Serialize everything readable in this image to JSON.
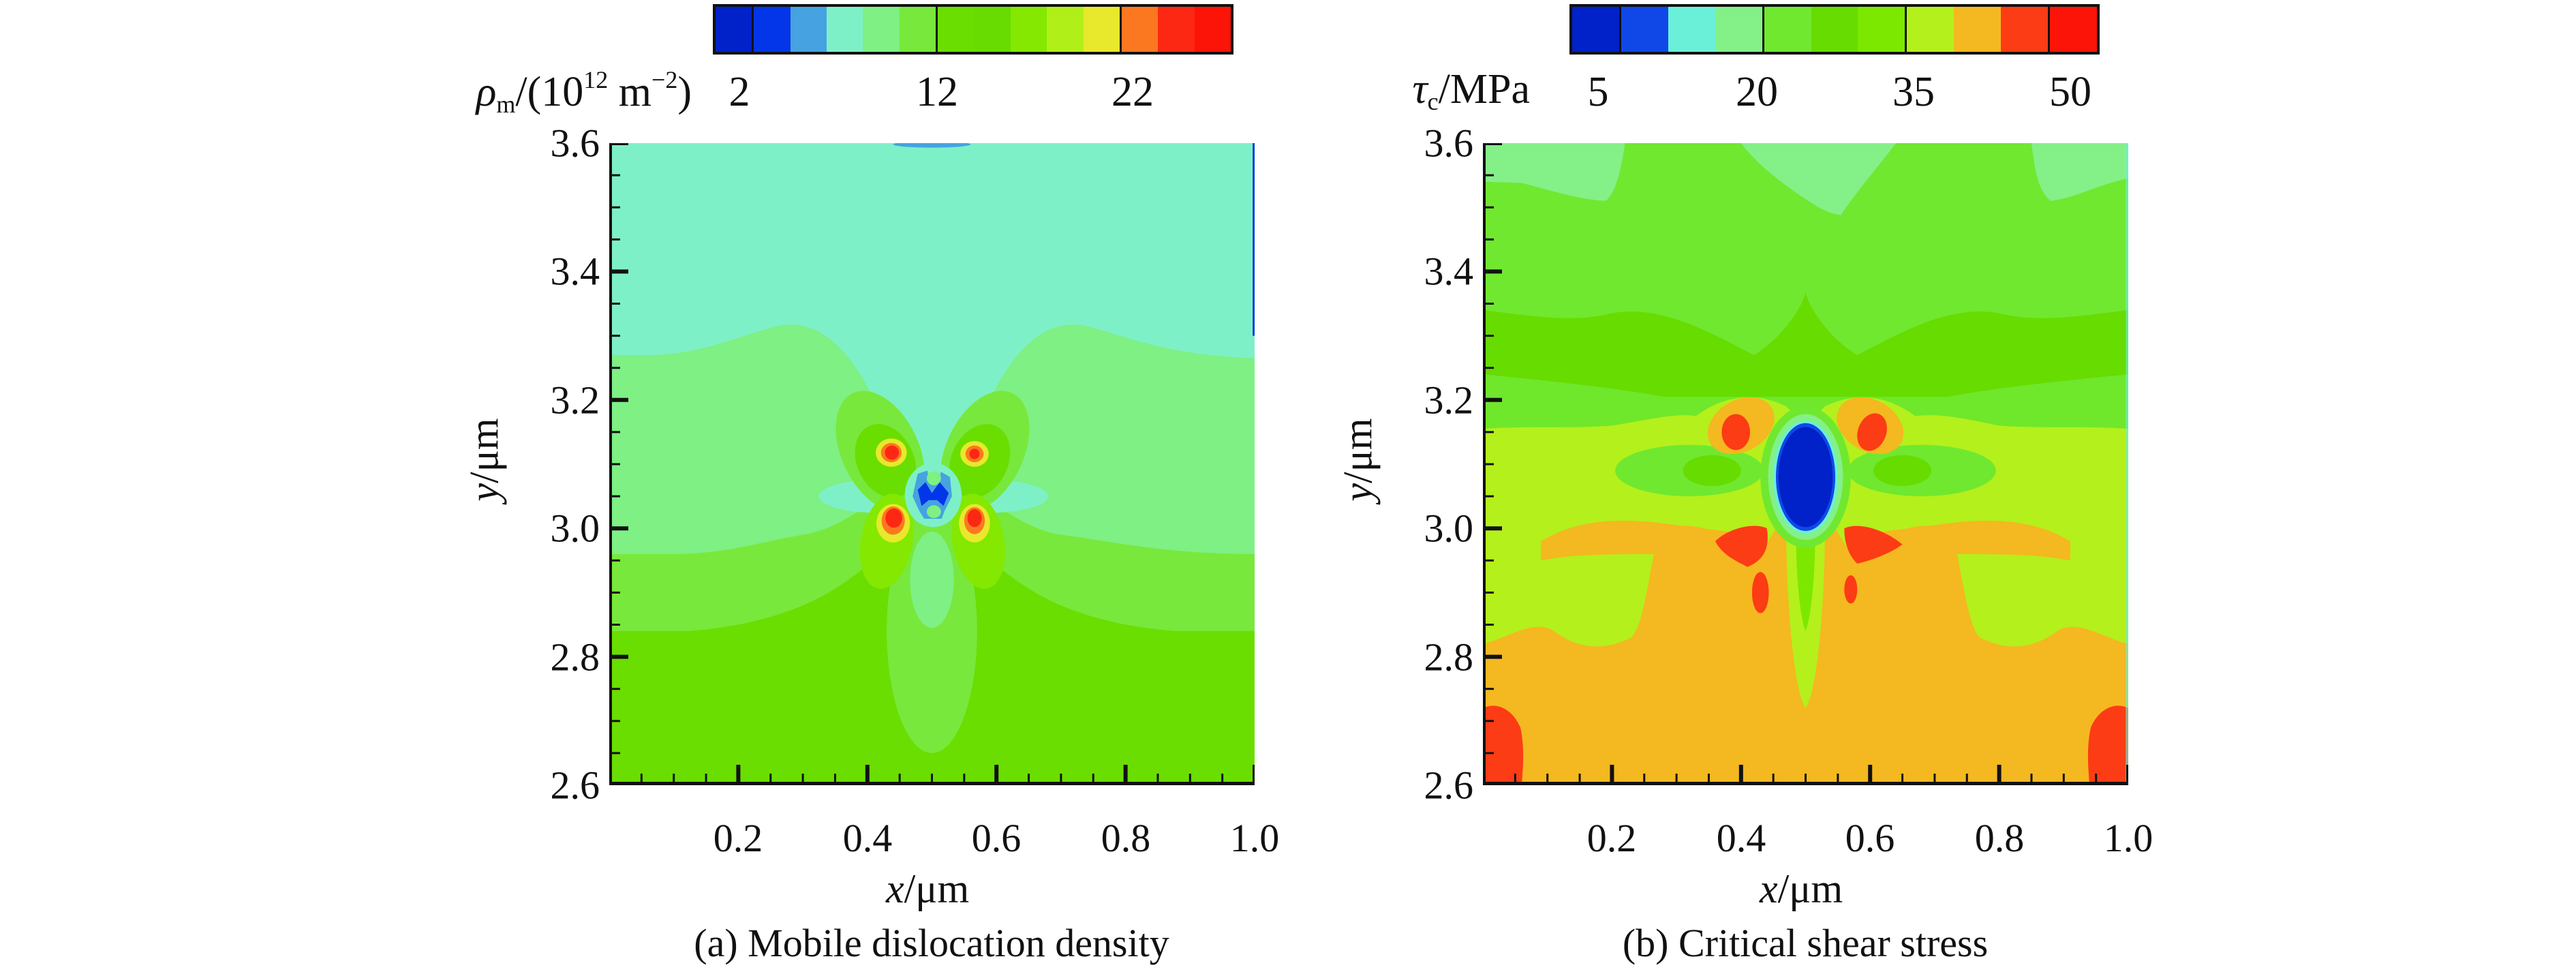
{
  "figure": {
    "panels": [
      {
        "id": "a",
        "caption": "(a) Mobile dislocation density",
        "colorbar": {
          "title_symbol": "ρ",
          "title_sub": "m",
          "title_rest_1": "/(10",
          "title_sup_1": "12",
          "title_rest_2": " m",
          "title_sup_2": "−2",
          "title_rest_3": ")",
          "tick_labels": [
            "2",
            "12",
            "22"
          ],
          "colors": [
            "#0022c8",
            "#0336e8",
            "#46a2e0",
            "#7ef0c8",
            "#7ef084",
            "#78e83c",
            "#6ade00",
            "#68dc00",
            "#84e800",
            "#b0f018",
            "#e8e82c",
            "#fc7820",
            "#fc2814",
            "#fc1408"
          ]
        },
        "x_axis": {
          "label_var": "x",
          "label_unit": "/μm",
          "tick_labels": [
            "0.2",
            "0.4",
            "0.6",
            "0.8",
            "1.0"
          ]
        },
        "y_axis": {
          "label_var": "y",
          "label_unit": "/μm",
          "tick_labels": [
            "3.6",
            "3.4",
            "3.2",
            "3.0",
            "2.8",
            "2.6"
          ]
        }
      },
      {
        "id": "b",
        "caption": "(b) Critical shear stress",
        "colorbar": {
          "title_symbol": "τ",
          "title_sub": "c",
          "title_rest_1": "/MPa",
          "tick_labels": [
            "5",
            "20",
            "35",
            "50"
          ],
          "colors": [
            "#0022c8",
            "#1048e8",
            "#6af0d8",
            "#84f088",
            "#70e830",
            "#66dc00",
            "#7ce800",
            "#b4f01c",
            "#f4b820",
            "#fc3c14",
            "#fc1408"
          ]
        }
      }
    ]
  },
  "chart_data": [
    {
      "type": "heatmap",
      "title": "(a) Mobile dislocation density",
      "colorbar_label": "ρm/(10^12 m^-2)",
      "colorbar_ticks": [
        2,
        12,
        22
      ],
      "colorbar_range": [
        0,
        27
      ],
      "xlabel": "x/μm",
      "ylabel": "y/μm",
      "xlim": [
        0,
        1.0
      ],
      "ylim": [
        2.6,
        3.6
      ],
      "x_ticks": [
        0.2,
        0.4,
        0.6,
        0.8,
        1.0
      ],
      "y_ticks": [
        2.6,
        2.8,
        3.0,
        3.2,
        3.4,
        3.6
      ],
      "regions": [
        {
          "name": "upper band",
          "y_range": [
            3.27,
            3.6
          ],
          "approx_value": 8
        },
        {
          "name": "middle band",
          "y_range": [
            2.97,
            3.27
          ],
          "approx_value": 10
        },
        {
          "name": "lower-middle band",
          "y_range": [
            2.85,
            2.97
          ],
          "approx_value": 11
        },
        {
          "name": "bottom band",
          "y_range": [
            2.6,
            2.85
          ],
          "approx_value": 13
        },
        {
          "name": "center void",
          "x": 0.5,
          "y": 3.08,
          "approx_value": 2
        },
        {
          "name": "four hot spots",
          "points": [
            [
              0.44,
              3.12
            ],
            [
              0.58,
              3.12
            ],
            [
              0.44,
              3.03
            ],
            [
              0.58,
              3.03
            ]
          ],
          "approx_value": 25
        }
      ]
    },
    {
      "type": "heatmap",
      "title": "(b) Critical shear stress",
      "colorbar_label": "τc/MPa",
      "colorbar_ticks": [
        5,
        20,
        35,
        50
      ],
      "colorbar_range": [
        0,
        55
      ],
      "xlabel": "x/μm",
      "ylabel": "y/μm",
      "xlim": [
        0,
        1.0
      ],
      "ylim": [
        2.6,
        3.6
      ],
      "x_ticks": [
        0.2,
        0.4,
        0.6,
        0.8,
        1.0
      ],
      "y_ticks": [
        2.6,
        2.8,
        3.0,
        3.2,
        3.4,
        3.6
      ],
      "regions": [
        {
          "name": "top band",
          "y_range": [
            3.5,
            3.6
          ],
          "approx_value": 22
        },
        {
          "name": "upper band",
          "y_range": [
            3.2,
            3.5
          ],
          "approx_value": 30
        },
        {
          "name": "middle band",
          "y_range": [
            2.95,
            3.2
          ],
          "approx_value": 40
        },
        {
          "name": "lower band",
          "y_range": [
            2.6,
            2.8
          ],
          "approx_value": 45
        },
        {
          "name": "center void",
          "x": 0.5,
          "y": 3.08,
          "approx_value": 2
        },
        {
          "name": "hot spots",
          "points": [
            [
              0.42,
              3.13
            ],
            [
              0.6,
              3.13
            ],
            [
              0.42,
              3.03
            ],
            [
              0.6,
              3.03
            ],
            [
              0.44,
              2.96
            ],
            [
              0.57,
              2.96
            ]
          ],
          "approx_value": 50
        },
        {
          "name": "bottom corners",
          "points": [
            [
              0.03,
              2.63
            ],
            [
              0.97,
              2.63
            ]
          ],
          "approx_value": 50
        }
      ]
    }
  ]
}
